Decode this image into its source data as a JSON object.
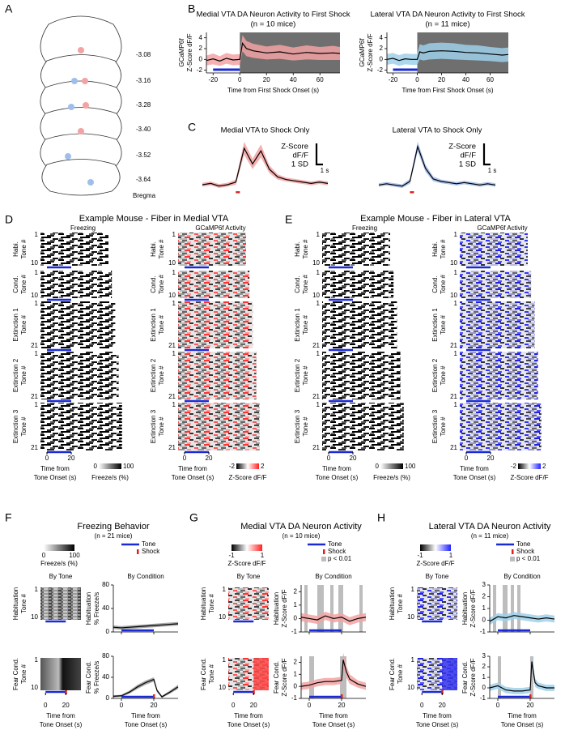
{
  "panel_labels": [
    "A",
    "B",
    "C",
    "D",
    "E",
    "F",
    "G",
    "H"
  ],
  "panel_a": {
    "levels": [
      "-3.08",
      "-3.16",
      "-3.28",
      "-3.40",
      "-3.52",
      "-3.64"
    ],
    "reference": "Bregma"
  },
  "raster_panels": [
    {
      "title": "Example Mouse - Fiber in Medial VTA",
      "columns": [
        {
          "title": "Freezing",
          "colorbar": {
            "ticks": [
              0,
              100
            ],
            "label": "Freeze/s (%)"
          }
        },
        {
          "title": "GCaMP6f Activity",
          "colorbar": {
            "ticks": [
              -2,
              2
            ],
            "label": "Z-Score dF/F"
          }
        }
      ],
      "rows": [
        {
          "label": "Habi.",
          "sublabel": "Tone #",
          "ticks": [
            1,
            10
          ]
        },
        {
          "label": "Cond.",
          "sublabel": "Tone #",
          "ticks": [
            1,
            10
          ]
        },
        {
          "label": "Extinction 1",
          "sublabel": "Tone #",
          "ticks": [
            1,
            21
          ]
        },
        {
          "label": "Extinction 2",
          "sublabel": "Tone #",
          "ticks": [
            1,
            21
          ]
        },
        {
          "label": "Extinction 3",
          "sublabel": "Tone #",
          "ticks": [
            1,
            21
          ]
        }
      ],
      "tone": [
        0,
        20
      ],
      "xticks": [
        0,
        20
      ],
      "x_label": [
        "Time from",
        "Tone Onset (s)"
      ]
    },
    {
      "title": "Example Mouse - Fiber in Lateral VTA",
      "columns": [
        {
          "title": "Freezing",
          "colorbar": {
            "ticks": [
              0,
              100
            ],
            "label": "Freeze/s (%)"
          }
        },
        {
          "title": "GCaMP6f Activity",
          "colorbar": {
            "ticks": [
              -2,
              2
            ],
            "label": "Z-Score dF/F"
          }
        }
      ],
      "rows": [
        {
          "label": "Habi.",
          "sublabel": "Tone #",
          "ticks": [
            1,
            10
          ]
        },
        {
          "label": "Cond.",
          "sublabel": "Tone #",
          "ticks": [
            1,
            10
          ]
        },
        {
          "label": "Extinction 1",
          "sublabel": "Tone #",
          "ticks": [
            1,
            21
          ]
        },
        {
          "label": "Extinction 2",
          "sublabel": "Tone #",
          "ticks": [
            1,
            21
          ]
        },
        {
          "label": "Extinction 3",
          "sublabel": "Tone #",
          "ticks": [
            1,
            21
          ]
        }
      ],
      "tone": [
        0,
        20
      ],
      "xticks": [
        0,
        20
      ],
      "x_label": [
        "Time from",
        "Tone Onset (s)"
      ]
    }
  ],
  "summary_panels": [
    {
      "title": "Freezing Behavior",
      "subtitle": "(n = 21 mice)",
      "colorbar": {
        "ticks": [
          0,
          100
        ],
        "label": "Freeze/s (%)"
      },
      "legend": [
        "Tone",
        "Shock"
      ],
      "column_titles": [
        "By Tone",
        "By Condition"
      ],
      "rows": [
        {
          "label": "Habituation",
          "sublabel": "Tone #",
          "ticks": [
            1,
            10
          ]
        },
        {
          "label": "Fear Cond.",
          "sublabel": "Tone #",
          "ticks": [
            1,
            10
          ]
        }
      ],
      "xticks": [
        0,
        20
      ],
      "x_label": [
        "Time from",
        "Tone Onset (s)"
      ]
    },
    {
      "title": "Medial VTA DA Neuron Activity",
      "subtitle": "(n = 10 mice)",
      "colorbar": {
        "ticks": [
          -1,
          1
        ],
        "label": "Z-Score dF/F"
      },
      "legend": [
        "Tone",
        "Shock",
        "p < 0.01"
      ],
      "column_titles": [
        "By Tone",
        "By Condition"
      ],
      "rows": [
        {
          "label": "Habituation",
          "sublabel": "Tone #",
          "ticks": [
            1,
            10
          ]
        },
        {
          "label": "Fear Cond.",
          "sublabel": "Tone #",
          "ticks": [
            1,
            10
          ]
        }
      ],
      "xticks": [
        0,
        20
      ],
      "x_label": [
        "Time from",
        "Tone Onset (s)"
      ]
    },
    {
      "title": "Lateral VTA DA Neuron Activity",
      "subtitle": "(n = 11 mice)",
      "colorbar": {
        "ticks": [
          -1,
          1
        ],
        "label": "Z-Score dF/F"
      },
      "legend": [
        "Tone",
        "Shock",
        "p < 0.01"
      ],
      "column_titles": [
        "By Tone",
        "By Condition"
      ],
      "rows": [
        {
          "label": "Habituation",
          "sublabel": "Tone #",
          "ticks": [
            1,
            10
          ]
        },
        {
          "label": "Fear Cond.",
          "sublabel": "Tone #",
          "ticks": [
            1,
            10
          ]
        }
      ],
      "xticks": [
        0,
        20
      ],
      "x_label": [
        "Time from",
        "Tone Onset (s)"
      ]
    }
  ],
  "chart_data": [
    {
      "type": "line",
      "title": "Medial VTA DA Neuron Activity to First Shock",
      "subtitle": "(n = 10 mice)",
      "y_label": [
        "GCaMP6f",
        "Z-Score dF/F"
      ],
      "x_label": [
        "Time from First Shock Onset (s)"
      ],
      "xlim": [
        -25,
        75
      ],
      "ylim": [
        -2.5,
        5
      ],
      "xticks": [
        -20,
        0,
        20,
        40,
        60
      ],
      "yticks": [
        -2,
        0,
        2,
        4
      ],
      "shade_start": 0,
      "baseline_interval": [
        -20,
        0
      ],
      "band_color": "#f3a3a3",
      "x": [
        -25,
        -20,
        -15,
        -10,
        -5,
        0,
        2,
        5,
        10,
        20,
        30,
        40,
        50,
        60,
        70,
        75
      ],
      "series": [
        {
          "color": "#000000",
          "values": [
            -0.2,
            0.1,
            -0.3,
            0.2,
            -0.1,
            0,
            3,
            2,
            1.6,
            1.2,
            1.4,
            1,
            1.3,
            1.1,
            1.2,
            1.1
          ],
          "error": [
            0.9,
            1,
            0.9,
            1,
            1,
            1,
            1.5,
            1.4,
            1.3,
            1.2,
            1.3,
            1.2,
            1.3,
            1.2,
            1.3,
            1.2
          ]
        }
      ]
    },
    {
      "type": "line",
      "title": "Lateral VTA DA Neuron Activity to First Shock",
      "subtitle": "(n = 11 mice)",
      "y_label": [
        "GCaMP6f",
        "Z-Score dF/F"
      ],
      "x_label": [
        "Time from First Shock Onset (s)"
      ],
      "xlim": [
        -25,
        75
      ],
      "ylim": [
        -2.5,
        5
      ],
      "xticks": [
        -20,
        0,
        20,
        40,
        60
      ],
      "yticks": [
        -2,
        0,
        2,
        4
      ],
      "shade_start": 0,
      "baseline_interval": [
        -20,
        0
      ],
      "band_color": "#9fd0ea",
      "x": [
        -25,
        -20,
        -15,
        -10,
        -5,
        0,
        2,
        5,
        10,
        20,
        30,
        40,
        50,
        60,
        70,
        75
      ],
      "series": [
        {
          "color": "#000000",
          "values": [
            0,
            0.2,
            -0.2,
            0.1,
            0,
            0,
            1.4,
            1.2,
            1.5,
            1.6,
            1.5,
            1.3,
            1.2,
            1,
            0.8,
            0.9
          ],
          "error": [
            1,
            1,
            1,
            1,
            1,
            1,
            1.4,
            1.4,
            1.5,
            1.5,
            1.5,
            1.4,
            1.4,
            1.3,
            1.3,
            1.3
          ]
        }
      ]
    },
    {
      "type": "line",
      "title": "Medial VTA to Shock Only",
      "band_color": "#f3a3a3",
      "scale_labels": {
        "y": [
          "Z-Score",
          "dF/F",
          "1 SD"
        ],
        "x": "1 s"
      },
      "series": [
        {
          "color": "#000000",
          "values": [
            0,
            0.1,
            -0.1,
            0,
            0.2,
            2.8,
            1.6,
            2.6,
            1.2,
            0.6,
            0.4,
            0.3,
            0.2,
            0.1,
            0.2,
            0.1
          ],
          "error": [
            0.15,
            0.15,
            0.15,
            0.15,
            0.2,
            0.5,
            0.4,
            0.5,
            0.3,
            0.2,
            0.15,
            0.15,
            0.15,
            0.15,
            0.15,
            0.15
          ]
        }
      ]
    },
    {
      "type": "line",
      "title": "Lateral VTA to Shock Only",
      "band_color": "#9fb8ea",
      "scale_labels": {
        "y": [
          "Z-Score",
          "dF/F",
          "1 SD"
        ],
        "x": "1 s"
      },
      "series": [
        {
          "color": "#000000",
          "values": [
            0,
            0.1,
            0,
            -0.1,
            0.3,
            3.2,
            1.4,
            0.5,
            0.3,
            0.2,
            0.1,
            0.2,
            0.1,
            0,
            0.1,
            0
          ],
          "error": [
            0.15,
            0.15,
            0.15,
            0.15,
            0.2,
            0.4,
            0.3,
            0.2,
            0.15,
            0.15,
            0.15,
            0.15,
            0.15,
            0.15,
            0.15,
            0.15
          ]
        }
      ]
    },
    {
      "type": "line",
      "y_label": [
        "Habituation",
        "% Freeze/s"
      ],
      "xlim": [
        -5,
        35
      ],
      "ylim": [
        0,
        80
      ],
      "xticks": [
        0,
        20
      ],
      "yticks": [
        0,
        40,
        80
      ],
      "tone": [
        0,
        20
      ],
      "band_color": "#999999",
      "x": [
        -5,
        0,
        5,
        10,
        15,
        20,
        25,
        30,
        35
      ],
      "series": [
        {
          "color": "#000000",
          "values": [
            8,
            7,
            8,
            9,
            10,
            11,
            12,
            13,
            14
          ],
          "error": [
            3,
            3,
            3,
            3,
            3,
            3,
            3,
            3,
            3
          ]
        }
      ]
    },
    {
      "type": "line",
      "y_label": [
        "Fear Cond.",
        "% Freeze/s"
      ],
      "xlim": [
        -5,
        35
      ],
      "ylim": [
        0,
        80
      ],
      "xticks": [
        0,
        20
      ],
      "yticks": [
        0,
        40,
        80
      ],
      "tone": [
        0,
        20
      ],
      "shock": 20,
      "band_color": "#999999",
      "x": [
        -5,
        0,
        5,
        10,
        15,
        20,
        22,
        25,
        30,
        35
      ],
      "series": [
        {
          "color": "#000000",
          "values": [
            4,
            5,
            12,
            22,
            30,
            36,
            15,
            3,
            12,
            22
          ],
          "error": [
            2,
            2,
            3,
            4,
            4,
            4,
            3,
            2,
            3,
            4
          ]
        }
      ]
    },
    {
      "type": "line",
      "y_label": [
        "Habituation",
        "Z-Score dF/F"
      ],
      "xlim": [
        -5,
        35
      ],
      "ylim": [
        -1,
        2.5
      ],
      "xticks": [
        0,
        20
      ],
      "yticks": [
        -1,
        0,
        1,
        2
      ],
      "tone": [
        0,
        20
      ],
      "band_color": "#f3a3a3",
      "significant_ranges": [
        [
          -3,
          -1
        ],
        [
          5,
          9
        ],
        [
          13,
          15
        ],
        [
          18,
          21
        ],
        [
          31,
          33
        ]
      ],
      "x": [
        -5,
        0,
        5,
        10,
        15,
        20,
        25,
        30,
        35
      ],
      "series": [
        {
          "color": "#000000",
          "values": [
            0.1,
            0,
            -0.1,
            0.2,
            0,
            0.1,
            -0.2,
            0,
            0.1
          ],
          "error": [
            0.3,
            0.3,
            0.3,
            0.3,
            0.3,
            0.3,
            0.3,
            0.3,
            0.3
          ]
        }
      ]
    },
    {
      "type": "line",
      "y_label": [
        "Fear Cond.",
        "Z-Score dF/F"
      ],
      "xlim": [
        -5,
        35
      ],
      "ylim": [
        -1,
        2.5
      ],
      "xticks": [
        0,
        20
      ],
      "yticks": [
        -1,
        0,
        1,
        2
      ],
      "tone": [
        0,
        20
      ],
      "shock": 20,
      "band_color": "#f3a3a3",
      "significant_ranges": [
        [
          0,
          3
        ],
        [
          19,
          23
        ]
      ],
      "x": [
        -5,
        0,
        5,
        10,
        15,
        20,
        21,
        23,
        25,
        30,
        35
      ],
      "series": [
        {
          "color": "#000000",
          "values": [
            0,
            0.1,
            0.3,
            0.4,
            0.4,
            0.5,
            2.2,
            1.2,
            0.6,
            0.2,
            0
          ],
          "error": [
            0.3,
            0.3,
            0.3,
            0.3,
            0.3,
            0.3,
            0.6,
            0.5,
            0.4,
            0.3,
            0.3
          ]
        }
      ]
    },
    {
      "type": "line",
      "y_label": [
        "Habituation",
        "Z-Score dF/F"
      ],
      "xlim": [
        -5,
        35
      ],
      "ylim": [
        -1,
        3
      ],
      "xticks": [
        0,
        20
      ],
      "yticks": [
        -1,
        0,
        1,
        2,
        3
      ],
      "tone": [
        0,
        20
      ],
      "band_color": "#9fd0ea",
      "significant_ranges": [
        [
          -3,
          -1
        ],
        [
          3,
          6
        ],
        [
          8,
          10
        ],
        [
          12,
          14
        ]
      ],
      "x": [
        -5,
        0,
        5,
        10,
        15,
        20,
        25,
        30,
        35
      ],
      "series": [
        {
          "color": "#000000",
          "values": [
            -0.1,
            0.3,
            0.2,
            0.4,
            0.3,
            0.2,
            0.1,
            0.2,
            0.1
          ],
          "error": [
            0.3,
            0.3,
            0.3,
            0.3,
            0.3,
            0.3,
            0.3,
            0.3,
            0.3
          ]
        }
      ]
    },
    {
      "type": "line",
      "y_label": [
        "Fear Cond.",
        "Z-Score dF/F"
      ],
      "xlim": [
        -5,
        35
      ],
      "ylim": [
        -1,
        3
      ],
      "xticks": [
        0,
        20
      ],
      "yticks": [
        -1,
        0,
        1,
        2,
        3
      ],
      "tone": [
        0,
        20
      ],
      "shock": 20,
      "band_color": "#9fd0ea",
      "significant_ranges": [
        [
          0,
          2
        ],
        [
          20,
          22
        ]
      ],
      "x": [
        -5,
        0,
        5,
        10,
        15,
        20,
        21,
        23,
        25,
        30,
        35
      ],
      "series": [
        {
          "color": "#000000",
          "values": [
            0,
            0.2,
            -0.2,
            -0.3,
            -0.3,
            -0.2,
            2.5,
            0.5,
            0.2,
            0,
            0
          ],
          "error": [
            0.3,
            0.3,
            0.3,
            0.3,
            0.3,
            0.3,
            0.5,
            0.4,
            0.3,
            0.3,
            0.3
          ]
        }
      ]
    }
  ]
}
